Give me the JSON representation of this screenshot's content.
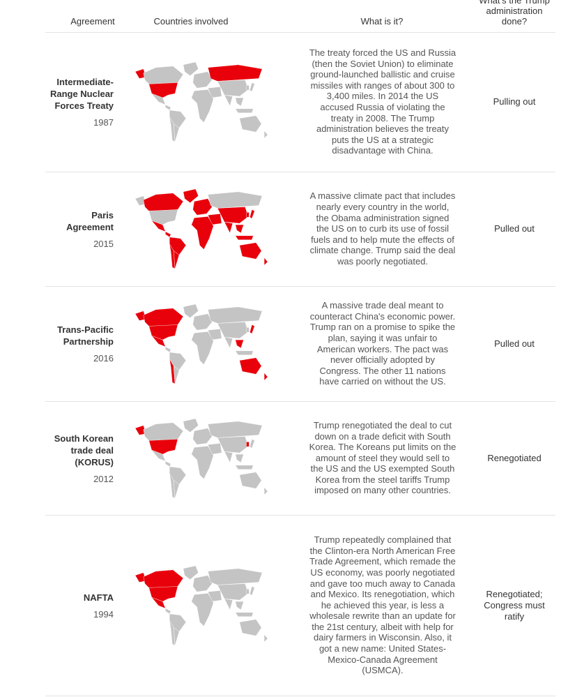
{
  "header": {
    "agreement": "Agreement",
    "countries": "Countries involved",
    "what": "What is it?",
    "trump": "What’s the Trump administration done?"
  },
  "rows": [
    {
      "name": "Intermediate-Range Nuclear Forces Treaty",
      "year": 1987,
      "description": "The treaty forced the US and Russia (then the Soviet Union) to eliminate ground-launched ballistic and cruise missiles with ranges of about 300 to 3,400 miles. In 2014 the US accused Russia of violating the treaty in 2008. The Trump administration believes the treaty puts the US at a strategic disadvantage with China.",
      "action": "Pulling out"
    },
    {
      "name": "Paris Agreement",
      "year": 2015,
      "description": "A massive climate pact that includes nearly every country in the world, the Obama administration signed the US on to curb its use of fossil fuels and to help mute the effects of climate change. Trump said the deal was poorly negotiated.",
      "action": "Pulled out"
    },
    {
      "name": "Trans-Pacific Partnership",
      "year": 2016,
      "description": "A massive trade deal meant to counteract China's economic power. Trump ran on a promise to spike the plan, saying it was unfair to American workers. The pact was never officially adopted by Congress. The other 11 nations have carried on without the US.",
      "action": "Pulled out"
    },
    {
      "name": "South Korean trade deal (KORUS)",
      "year": 2012,
      "description": "Trump renegotiated the deal to cut down on a trade deficit with South Korea. The Koreans put limits on the amount of steel they would sell to the US and the US exempted South Korea from the steel tariffs Trump imposed on many other countries.",
      "action": "Renegotiated"
    },
    {
      "name": "NAFTA",
      "year": 1994,
      "description": "Trump repeatedly complained that the Clinton-era North American Free Trade Agreement, which remade the US economy, was poorly negotiated and gave too much away to Canada and Mexico. Its renegotiation, which he achieved this year, is less a wholesale rewrite than an update for the 21st century, albeit with help for dairy farmers in Wisconsin. Also, it got a new name: United States-Mexico-Canada Agreement (USMCA).",
      "action": "Renegotiated; Congress must ratify"
    }
  ]
}
